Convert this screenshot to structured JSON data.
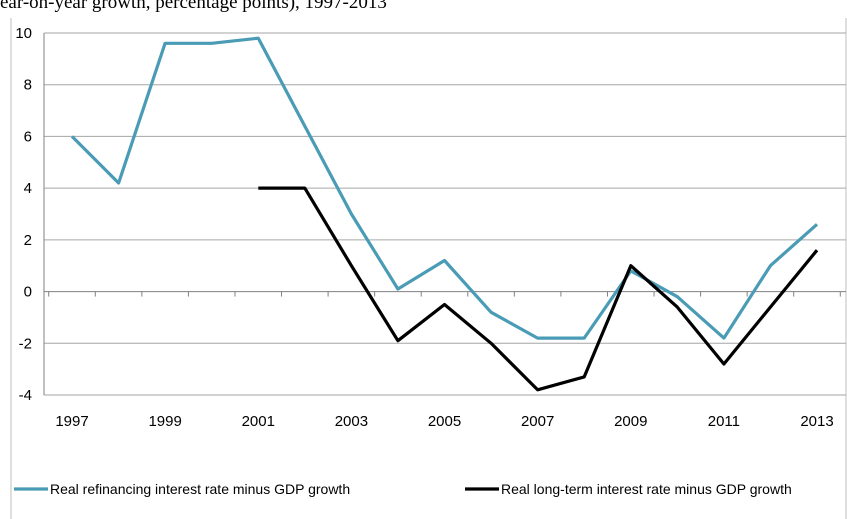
{
  "caption": "ear-on-year growth, percentage points), 1997-2013",
  "chart_data": {
    "type": "line",
    "x": [
      1997,
      1998,
      1999,
      2000,
      2001,
      2002,
      2003,
      2004,
      2005,
      2006,
      2007,
      2008,
      2009,
      2010,
      2011,
      2012,
      2013
    ],
    "x_tick_labels": [
      "1997",
      "1999",
      "2001",
      "2003",
      "2005",
      "2007",
      "2009",
      "2011",
      "2013"
    ],
    "y_tick_labels": [
      "10",
      "8",
      "6",
      "4",
      "2",
      "0",
      "-2",
      "-4"
    ],
    "ylim": [
      -4,
      10
    ],
    "grid": true,
    "legend_position": "bottom",
    "series": [
      {
        "name": "Real refinancing interest rate minus GDP growth",
        "color": "#4a9bb5",
        "values": [
          6.0,
          4.2,
          9.6,
          9.6,
          9.8,
          6.4,
          3.0,
          0.1,
          1.2,
          -0.8,
          -1.8,
          -1.8,
          0.8,
          -0.2,
          -1.8,
          1.0,
          2.6
        ]
      },
      {
        "name": "Real long-term interest rate minus GDP growth",
        "color": "#000000",
        "values": [
          null,
          null,
          null,
          null,
          4.0,
          4.0,
          1.0,
          -1.9,
          -0.5,
          -2.0,
          -3.8,
          -3.3,
          1.0,
          -0.6,
          -2.8,
          -0.6,
          1.6
        ]
      }
    ]
  }
}
